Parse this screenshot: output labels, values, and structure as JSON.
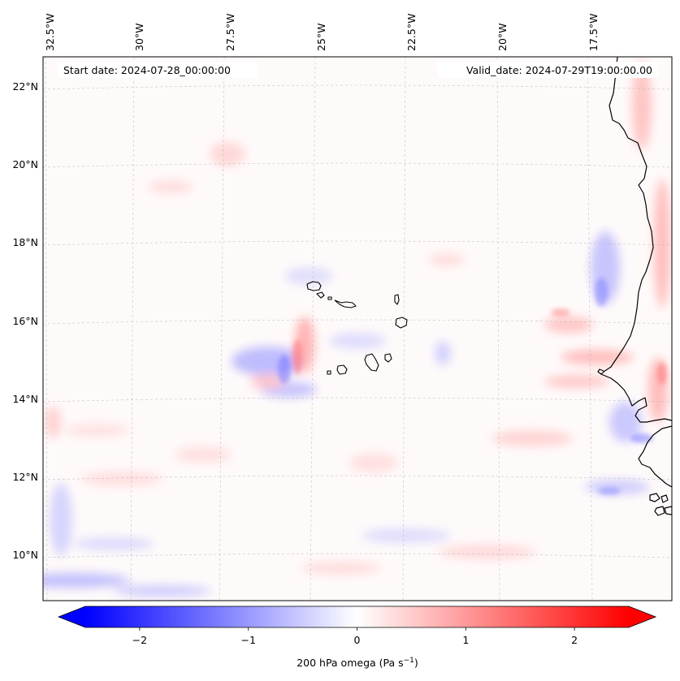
{
  "map": {
    "start_date": "Start date: 2024-07-28_00:00:00",
    "valid_date": "Valid_date: 2024-07-29T19:00:00.00",
    "lon_ticks": [
      "32.5°W",
      "30°W",
      "27.5°W",
      "25°W",
      "22.5°W",
      "20°W",
      "17.5°W"
    ],
    "lat_ticks": [
      "22°N",
      "20°N",
      "18°N",
      "16°N",
      "14°N",
      "12°N",
      "10°N"
    ],
    "lon_range_deg": [
      -32.7,
      -15.1
    ],
    "lat_range_deg": [
      8.85,
      22.75
    ]
  },
  "colorbar": {
    "label_text": "200 hPa omega (Pa s",
    "label_unit_exponent": "−1",
    "label_close": ")",
    "ticks": [
      "−2",
      "−1",
      "0",
      "1",
      "2"
    ],
    "tick_values": [
      -2,
      -1,
      0,
      1,
      2
    ],
    "range": [
      -2.5,
      2.5
    ],
    "extend": "both",
    "colormap": "bwr",
    "color_low": "#0000ff",
    "color_mid": "#ffffff",
    "color_high": "#ff0000"
  },
  "colors": {
    "coastline": "#000000",
    "gridline": "#b0b0b0",
    "background": "#fffafa"
  }
}
